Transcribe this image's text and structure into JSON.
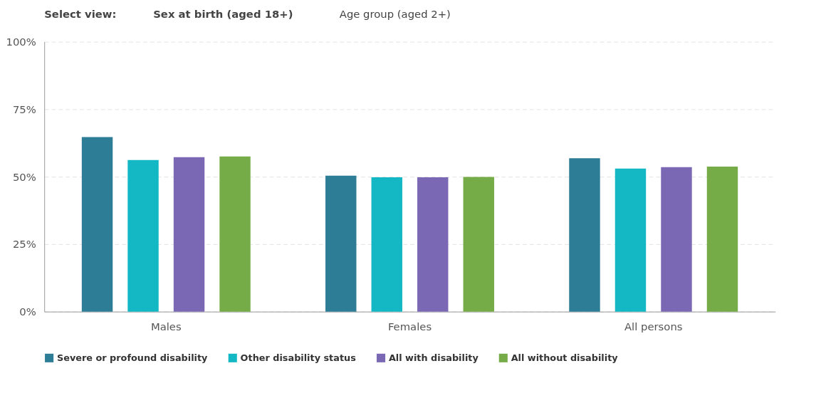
{
  "chart_data": {
    "type": "bar",
    "categories": [
      "Males",
      "Females",
      "All persons"
    ],
    "series": [
      {
        "name": "Severe or profound disability",
        "color": "#2e7d96",
        "values": [
          64.7,
          50.4,
          56.8
        ]
      },
      {
        "name": "Other disability status",
        "color": "#14b8c4",
        "values": [
          56.2,
          49.8,
          53.0
        ]
      },
      {
        "name": "All with disability",
        "color": "#7b68b4",
        "values": [
          57.2,
          49.8,
          53.5
        ]
      },
      {
        "name": "All without disability",
        "color": "#76ac47",
        "values": [
          57.5,
          49.9,
          53.7
        ]
      }
    ],
    "ylim": [
      0,
      100
    ],
    "yticks": [
      {
        "value": 0,
        "label": "0%"
      },
      {
        "value": 25,
        "label": "25%"
      },
      {
        "value": 50,
        "label": "50%"
      },
      {
        "value": 75,
        "label": "75%"
      },
      {
        "value": 100,
        "label": "100%"
      }
    ],
    "grid": "y",
    "legend": "bottom",
    "annotations": [
      "Select view:",
      "Sex at birth (aged 18+)",
      "Age group (aged 2+)"
    ]
  }
}
